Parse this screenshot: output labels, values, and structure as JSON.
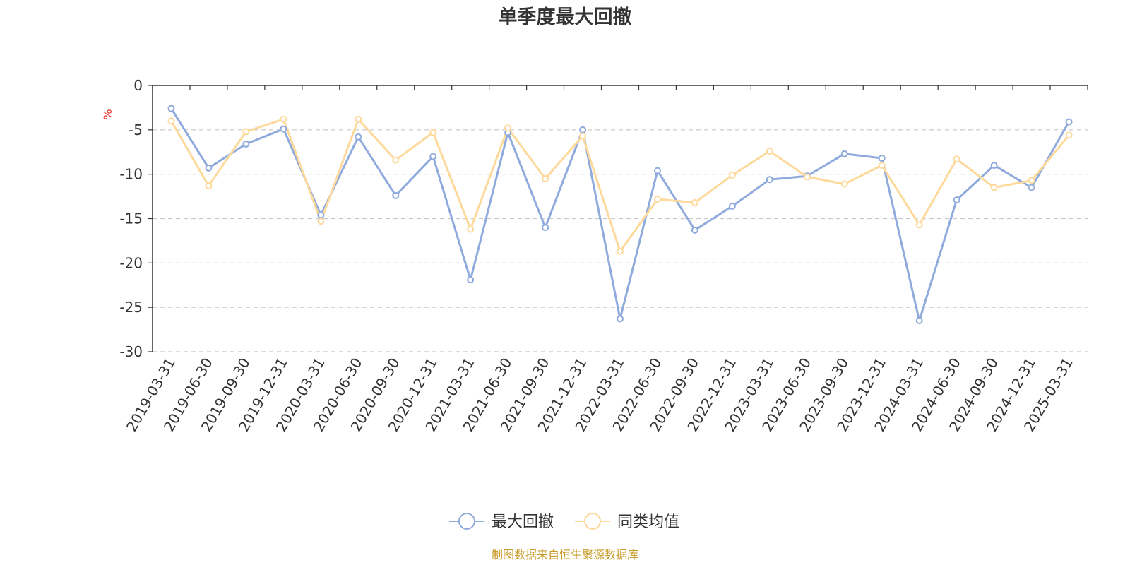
{
  "chart_data": {
    "type": "line",
    "title": "单季度最大回撤",
    "ylabel": "%",
    "ylim": [
      -30,
      0
    ],
    "yticks": [
      0,
      -5,
      -10,
      -15,
      -20,
      -25,
      -30
    ],
    "grid": true,
    "legend_position": "bottom",
    "x": [
      "2019-03-31",
      "2019-06-30",
      "2019-09-30",
      "2019-12-31",
      "2020-03-31",
      "2020-06-30",
      "2020-09-30",
      "2020-12-31",
      "2021-03-31",
      "2021-06-30",
      "2021-09-30",
      "2021-12-31",
      "2022-03-31",
      "2022-06-30",
      "2022-09-30",
      "2022-12-31",
      "2023-03-31",
      "2023-06-30",
      "2023-09-30",
      "2023-12-31",
      "2024-03-31",
      "2024-06-30",
      "2024-09-30",
      "2024-12-31",
      "2025-03-31"
    ],
    "series": [
      {
        "name": "最大回撤",
        "color": "#8faadc",
        "values": [
          -2.6,
          -9.3,
          -6.6,
          -4.9,
          -14.6,
          -5.8,
          -12.4,
          -8.0,
          -21.9,
          -5.3,
          -16.0,
          -5.0,
          -26.3,
          -9.6,
          -16.3,
          -13.6,
          -10.6,
          -10.2,
          -7.7,
          -8.2,
          -26.5,
          -12.9,
          -9.0,
          -11.5,
          -4.1
        ]
      },
      {
        "name": "同类均值",
        "color": "#fdd99b",
        "values": [
          -4.0,
          -11.3,
          -5.2,
          -3.8,
          -15.3,
          -3.8,
          -8.4,
          -5.3,
          -16.2,
          -4.8,
          -10.5,
          -5.7,
          -18.7,
          -12.8,
          -13.2,
          -10.1,
          -7.4,
          -10.3,
          -11.1,
          -9.0,
          -15.7,
          -8.3,
          -11.5,
          -10.7,
          -5.6
        ]
      }
    ]
  },
  "footer": {
    "source": "制图数据来自恒生聚源数据库"
  }
}
